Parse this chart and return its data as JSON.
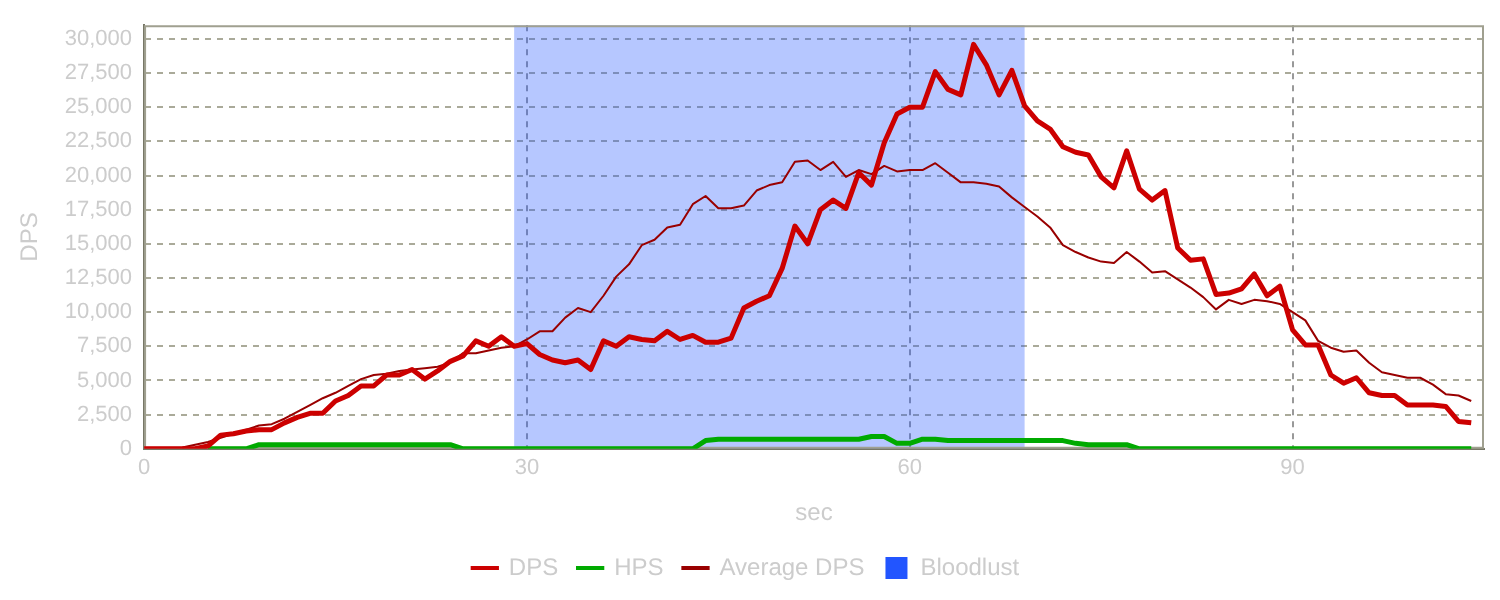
{
  "chart_data": {
    "type": "line",
    "xlabel": "sec",
    "ylabel": "DPS",
    "x": [
      0,
      1,
      2,
      3,
      4,
      5,
      6,
      7,
      8,
      9,
      10,
      11,
      12,
      13,
      14,
      15,
      16,
      17,
      18,
      19,
      20,
      21,
      22,
      23,
      24,
      25,
      26,
      27,
      28,
      29,
      30,
      31,
      32,
      33,
      34,
      35,
      36,
      37,
      38,
      39,
      40,
      41,
      42,
      43,
      44,
      45,
      46,
      47,
      48,
      49,
      50,
      51,
      52,
      53,
      54,
      55,
      56,
      57,
      58,
      59,
      60,
      61,
      62,
      63,
      64,
      65,
      66,
      67,
      68,
      69,
      70,
      71,
      72,
      73,
      74,
      75,
      76,
      77,
      78,
      79,
      80,
      81,
      82,
      83,
      84,
      85,
      86,
      87,
      88,
      89,
      90,
      91,
      92,
      93,
      94,
      95,
      96,
      97,
      98,
      99,
      100,
      101,
      102,
      103,
      104
    ],
    "series": [
      {
        "name": "DPS",
        "color": "#cc0000",
        "values": [
          0,
          0,
          0,
          0,
          0,
          200,
          1000,
          1100,
          1300,
          1400,
          1400,
          1900,
          2300,
          2600,
          2600,
          3500,
          3900,
          4600,
          4600,
          5400,
          5400,
          5800,
          5100,
          5700,
          6400,
          6800,
          7900,
          7500,
          8200,
          7500,
          7700,
          6900,
          6500,
          6300,
          6500,
          5800,
          7900,
          7500,
          8200,
          8000,
          7900,
          8600,
          8000,
          8300,
          7800,
          7800,
          8100,
          10300,
          10800,
          11200,
          13200,
          16300,
          15000,
          17500,
          18200,
          17600,
          20200,
          19300,
          22400,
          24500,
          25000,
          25000,
          27600,
          26300,
          25900,
          29600,
          28100,
          25900,
          27700,
          25100,
          24000,
          23400,
          22100,
          21700,
          21500,
          19900,
          19100,
          21800,
          19000,
          18200,
          18900,
          14700,
          13800,
          13900,
          11300,
          11400,
          11700,
          12800,
          11200,
          11900,
          8700,
          7600,
          7600,
          5400,
          4800,
          5200,
          4100,
          3900,
          3900,
          3200,
          3200,
          3200,
          3100,
          2000,
          1900
        ]
      },
      {
        "name": "HPS",
        "color": "#00aa00",
        "values": [
          null,
          null,
          null,
          null,
          null,
          0,
          0,
          0,
          0,
          300,
          300,
          300,
          300,
          300,
          300,
          300,
          300,
          300,
          300,
          300,
          300,
          300,
          300,
          300,
          300,
          0,
          0,
          0,
          0,
          0,
          0,
          0,
          0,
          0,
          0,
          0,
          0,
          0,
          0,
          0,
          0,
          0,
          0,
          0,
          600,
          700,
          700,
          700,
          700,
          700,
          700,
          700,
          700,
          700,
          700,
          700,
          700,
          900,
          900,
          400,
          400,
          700,
          700,
          600,
          600,
          600,
          600,
          600,
          600,
          600,
          600,
          600,
          600,
          400,
          300,
          300,
          300,
          300,
          0,
          0,
          0,
          0,
          0,
          0,
          0,
          0,
          0,
          0,
          0,
          0,
          0,
          0,
          0,
          0,
          0,
          0,
          0,
          0,
          0,
          0,
          0,
          0,
          0,
          0,
          0
        ]
      },
      {
        "name": "Average DPS",
        "color": "#990000",
        "values": [
          null,
          null,
          null,
          100,
          300,
          500,
          800,
          1100,
          1400,
          1700,
          1800,
          2200,
          2700,
          3200,
          3700,
          4100,
          4600,
          5100,
          5400,
          5500,
          5700,
          5800,
          5900,
          6000,
          6300,
          7000,
          7000,
          7200,
          7400,
          7500,
          8000,
          8600,
          8600,
          9600,
          10300,
          10000,
          11200,
          12600,
          13500,
          14900,
          15300,
          16200,
          16400,
          17900,
          18500,
          17600,
          17600,
          17800,
          18900,
          19300,
          19500,
          21000,
          21100,
          20400,
          21000,
          19900,
          20400,
          20100,
          20700,
          20300,
          20400,
          20400,
          20900,
          20200,
          19500,
          19500,
          19400,
          19200,
          18400,
          17700,
          17000,
          16200,
          14900,
          14400,
          14000,
          13700,
          13600,
          14400,
          13700,
          12900,
          13000,
          12400,
          11800,
          11100,
          10200,
          10900,
          10600,
          10900,
          10800,
          10600,
          10000,
          9400,
          7900,
          7400,
          7100,
          7200,
          6300,
          5600,
          5400,
          5200,
          5200,
          4700,
          4000,
          3900,
          3500
        ]
      }
    ],
    "bands": [
      {
        "axis": "x",
        "from": 29,
        "to": 69,
        "label": "Bloodlust",
        "color": "#2255ff"
      }
    ],
    "xlim": [
      0,
      105
    ],
    "xticks": [
      0,
      30,
      60,
      90
    ],
    "ylim": [
      0,
      31000
    ],
    "yticks": [
      0,
      {
        "value": 2500,
        "label": "2,500"
      },
      {
        "value": 5000,
        "label": "5,000"
      },
      {
        "value": 7500,
        "label": "7,500"
      },
      {
        "value": 10000,
        "label": "10,000"
      },
      {
        "value": 12500,
        "label": "12,500"
      },
      {
        "value": 15000,
        "label": "15,000"
      },
      {
        "value": 17500,
        "label": "17,500"
      },
      {
        "value": 20000,
        "label": "20,000"
      },
      {
        "value": 22500,
        "label": "22,500"
      },
      {
        "value": 25000,
        "label": "25,000"
      },
      {
        "value": 27500,
        "label": "27,500"
      },
      {
        "value": 30000,
        "label": "30,000"
      }
    ],
    "grid": true,
    "legend": "bottom",
    "marker": "none",
    "line_style": "solid"
  }
}
